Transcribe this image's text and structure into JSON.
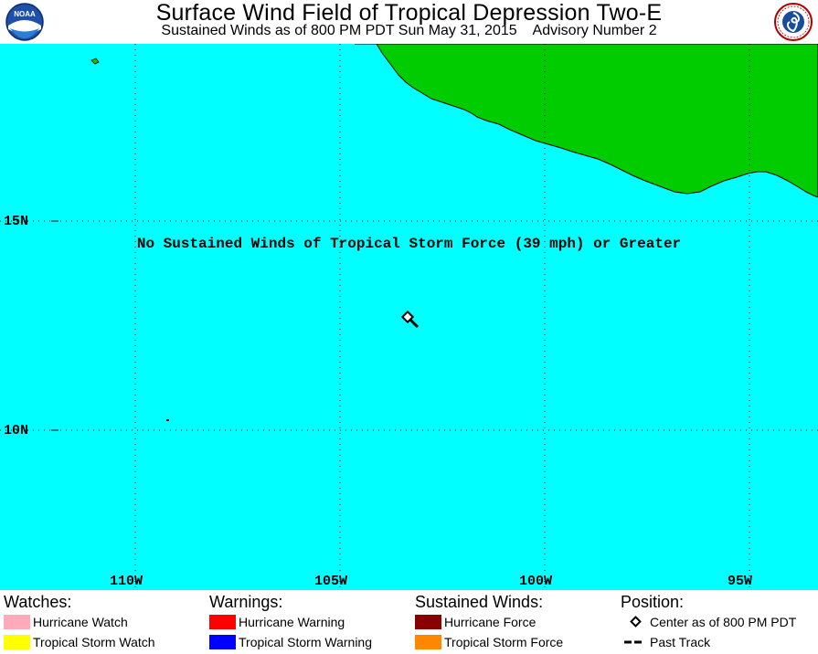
{
  "header": {
    "title": "Surface Wind Field of Tropical Depression Two-E",
    "subtitle": "Sustained Winds as of 800 PM PDT Sun May 31, 2015    Advisory Number 2",
    "logo_left": "noaa-logo",
    "logo_right": "nws-logo",
    "logo_left_text": "NOAA",
    "logo_right_text": "NATIONAL WEATHER SERVICE"
  },
  "map": {
    "ocean_color": "#00ffff",
    "land_color": "#00cc00",
    "grid_labels": {
      "lat": [
        "15N",
        "10N"
      ],
      "lon": [
        "110W",
        "105W",
        "100W",
        "95W"
      ]
    },
    "notice": "No Sustained Winds of Tropical Storm Force (39 mph) or Greater"
  },
  "legend": {
    "watches": {
      "heading": "Watches:",
      "items": [
        {
          "label": "Hurricane Watch",
          "color": "#ffaabb"
        },
        {
          "label": "Tropical Storm Watch",
          "color": "#ffff00"
        }
      ]
    },
    "warnings": {
      "heading": "Warnings:",
      "items": [
        {
          "label": "Hurricane Warning",
          "color": "#ff0000"
        },
        {
          "label": "Tropical Storm Warning",
          "color": "#0000ff"
        }
      ]
    },
    "winds": {
      "heading": "Sustained Winds:",
      "items": [
        {
          "label": "Hurricane Force",
          "color": "#880000"
        },
        {
          "label": "Tropical Storm Force",
          "color": "#ff8800"
        }
      ]
    },
    "position": {
      "heading": "Position:",
      "items": [
        {
          "label": "Center as of 800 PM PDT",
          "icon": "diamond-icon"
        },
        {
          "label": "Past Track",
          "icon": "dashed-line-icon"
        }
      ]
    }
  }
}
